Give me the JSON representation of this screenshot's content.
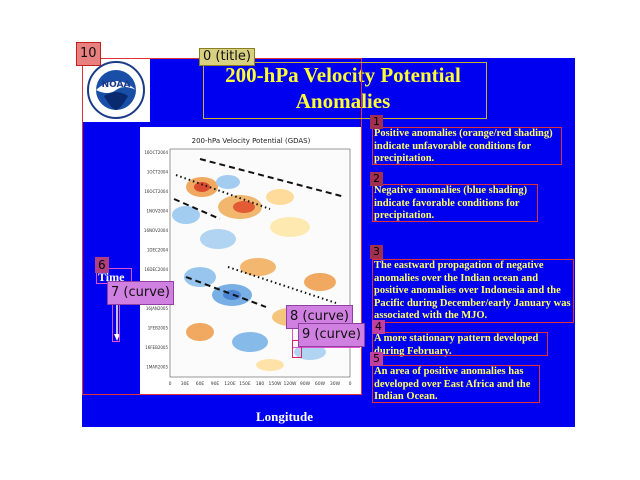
{
  "slide": {
    "title_line1": "200-hPa Velocity Potential",
    "title_line2": "Anomalies",
    "logo_text": "NOAA",
    "chart_title": "200-hPa Velocity Potential (GDAS)",
    "y_ticks": [
      "16OCT2004",
      "1OCT2004",
      "16OCT2004",
      "1NOV2004",
      "16NOV2004",
      "1DEC2004",
      "16DEC2004",
      "1JAN2005",
      "16JAN2005",
      "1FEB2005",
      "16FEB2005",
      "1MAR2005"
    ],
    "x_ticks": [
      "0",
      "30E",
      "60E",
      "90E",
      "120E",
      "150E",
      "180",
      "150W",
      "120W",
      "90W",
      "60W",
      "30W",
      "0"
    ],
    "time_label": "Time",
    "longitude_label": "Longitude",
    "bullets": [
      {
        "num": "1",
        "text": "Positive anomalies (orange/red shading) indicate unfavorable conditions for precipitation."
      },
      {
        "num": "2",
        "text": "Negative anomalies (blue shading) indicate favorable conditions for precipitation."
      },
      {
        "num": "3",
        "text": "The eastward propagation of negative anomalies over the Indian ocean and positive anomalies over Indonesia and the Pacific during December/early January was associated with the MJO."
      },
      {
        "num": "4",
        "text": "A more stationary pattern developed during February."
      },
      {
        "num": "5",
        "text": "An area of positive anomalies has developed over East Africa and the Indian Ocean."
      }
    ]
  },
  "annotations": {
    "title_label": "0 (title)",
    "logo_label": "10",
    "time_label": "6",
    "curve7_label": "7 (curve)",
    "curve8_label": "8 (curve)",
    "curve9_label": "9 (curve)",
    "b1": "1",
    "b2": "2",
    "b3": "3",
    "b4": "4",
    "b5": "5"
  }
}
